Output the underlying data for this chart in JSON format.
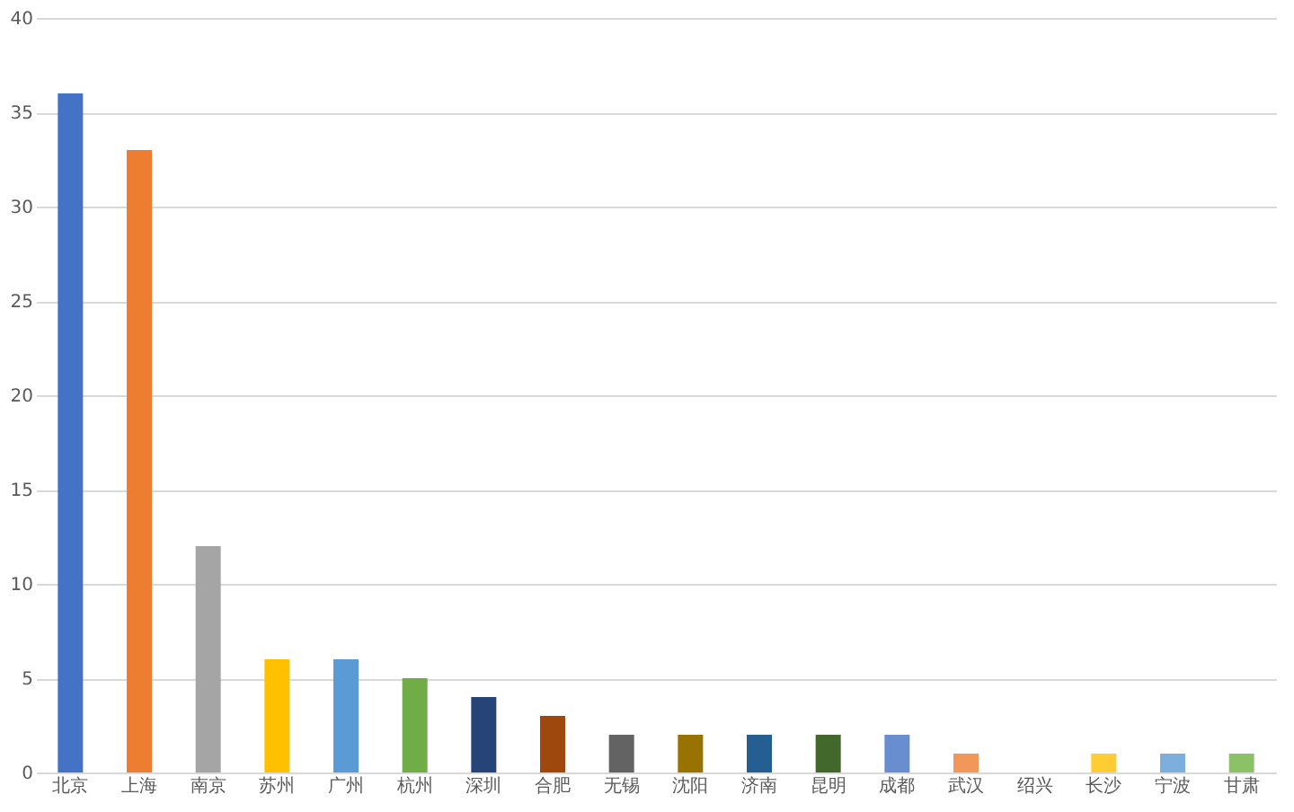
{
  "chart_data": {
    "type": "bar",
    "categories": [
      "北京",
      "上海",
      "南京",
      "苏州",
      "广州",
      "杭州",
      "深圳",
      "合肥",
      "无锡",
      "沈阳",
      "济南",
      "昆明",
      "成都",
      "武汉",
      "绍兴",
      "长沙",
      "宁波",
      "甘肃"
    ],
    "values": [
      36,
      33,
      12,
      6,
      6,
      5,
      4,
      3,
      2,
      2,
      2,
      2,
      2,
      1,
      null,
      1,
      1,
      1
    ],
    "colors": [
      "#4472c4",
      "#ed7d31",
      "#a5a5a5",
      "#ffc000",
      "#5b9bd5",
      "#70ad47",
      "#264478",
      "#9e480e",
      "#636363",
      "#997300",
      "#255e91",
      "#43682b",
      "#698ed0",
      "#f1975a",
      "#b7b7b7",
      "#ffcd33",
      "#7cafdd",
      "#8cc168"
    ],
    "ylim": [
      0,
      40
    ],
    "yticks": [
      0,
      5,
      10,
      15,
      20,
      25,
      30,
      35,
      40
    ],
    "grid": "y"
  }
}
